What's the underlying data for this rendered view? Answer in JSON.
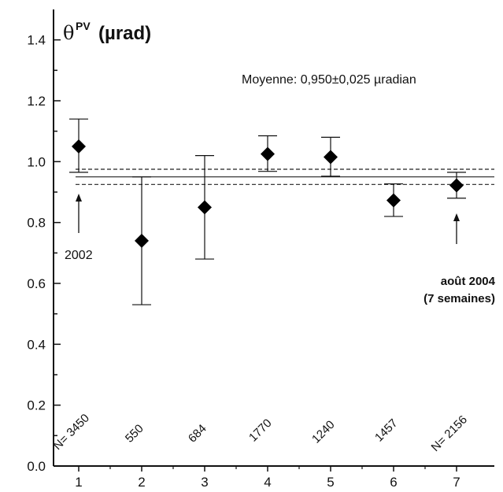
{
  "chart_data": {
    "type": "scatter",
    "title": {
      "symbol": "θ",
      "superscript": "PV",
      "unit": "(µrad)"
    },
    "categories": [
      "1",
      "2",
      "3",
      "4",
      "5",
      "6",
      "7"
    ],
    "x": [
      1,
      2,
      3,
      4,
      5,
      6,
      7
    ],
    "series": [
      {
        "values": [
          1.05,
          0.74,
          0.85,
          1.025,
          1.015,
          0.873,
          0.922
        ],
        "err_low": [
          0.965,
          0.53,
          0.68,
          0.968,
          0.952,
          0.82,
          0.88
        ],
        "err_high": [
          1.14,
          0.95,
          1.02,
          1.085,
          1.08,
          0.927,
          0.965
        ],
        "marker": "diamond"
      }
    ],
    "sample_sizes": [
      "N= 3450",
      "550",
      "684",
      "1770",
      "1240",
      "1457",
      "N= 2156"
    ],
    "mean": {
      "value": 0.95,
      "band_low": 0.925,
      "band_high": 0.975
    },
    "annotations": {
      "mean_text": "Moyenne: 0,950±0,025 µradian",
      "first": "2002",
      "last_line1": "août  2004",
      "last_line2": "(7 semaines)"
    },
    "yticks": [
      "0.0",
      "0.2",
      "0.4",
      "0.6",
      "0.8",
      "1.0",
      "1.2",
      "1.4"
    ],
    "ylim": [
      0,
      1.5
    ],
    "xlim": [
      0.6,
      7.6
    ],
    "grid": false
  }
}
